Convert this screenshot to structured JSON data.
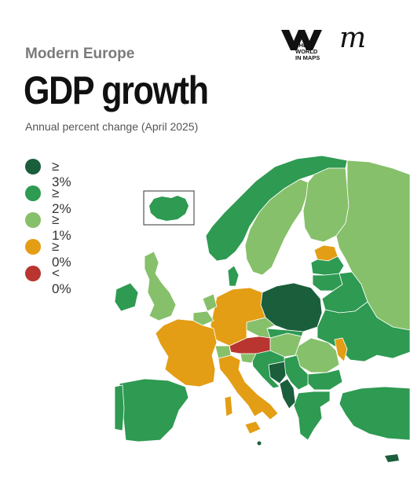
{
  "header": {
    "kicker": "Modern Europe",
    "title": "GDP growth",
    "subtitle": "Annual percent change (April 2025)"
  },
  "logo": {
    "line1": "THE",
    "line2": "WORLD",
    "line3": "IN MAPS",
    "script_mark": "m"
  },
  "legend": [
    {
      "label": "≥ 3%",
      "color": "#1b5e3c"
    },
    {
      "label": "≥ 2%",
      "color": "#2e9a52"
    },
    {
      "label": "≥ 1%",
      "color": "#86c06a"
    },
    {
      "label": "≥ 0%",
      "color": "#e39e15"
    },
    {
      "label": "< 0%",
      "color": "#b8362f"
    }
  ],
  "map": {
    "border_color": "#ffffff",
    "inset_label": "Iceland"
  }
}
